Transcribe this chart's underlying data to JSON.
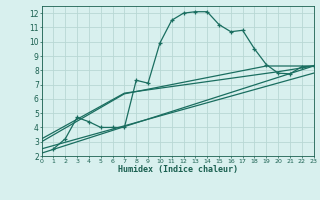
{
  "xlabel": "Humidex (Indice chaleur)",
  "background_color": "#d8f0ee",
  "grid_color": "#b8d8d4",
  "line_color": "#1a6e60",
  "xlim": [
    0,
    23
  ],
  "ylim": [
    2,
    12.5
  ],
  "xticks": [
    0,
    1,
    2,
    3,
    4,
    5,
    6,
    7,
    8,
    9,
    10,
    11,
    12,
    13,
    14,
    15,
    16,
    17,
    18,
    19,
    20,
    21,
    22,
    23
  ],
  "yticks": [
    2,
    3,
    4,
    5,
    6,
    7,
    8,
    9,
    10,
    11,
    12
  ],
  "line1_x": [
    1,
    2,
    3,
    4,
    5,
    6,
    7,
    8,
    9,
    10,
    11,
    12,
    13,
    14,
    15,
    16,
    17,
    18,
    19,
    20,
    21,
    22,
    23
  ],
  "line1_y": [
    2.5,
    3.2,
    4.7,
    4.4,
    4.0,
    4.0,
    4.0,
    7.3,
    7.1,
    9.9,
    11.5,
    12.0,
    12.1,
    12.1,
    11.2,
    10.7,
    10.8,
    9.5,
    8.4,
    7.8,
    7.75,
    8.25,
    8.3
  ],
  "line2_x": [
    0,
    23
  ],
  "line2_y": [
    2.2,
    8.3
  ],
  "line3_x": [
    0,
    23
  ],
  "line3_y": [
    2.5,
    7.8
  ],
  "line4_x": [
    0,
    7,
    19,
    23
  ],
  "line4_y": [
    3.0,
    6.35,
    8.3,
    8.3
  ],
  "line5_x": [
    0,
    7,
    20,
    23
  ],
  "line5_y": [
    3.2,
    6.4,
    7.9,
    8.3
  ]
}
